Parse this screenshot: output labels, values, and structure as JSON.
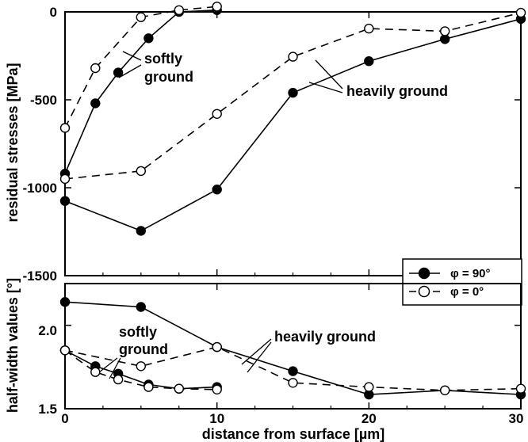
{
  "chart_data": [
    {
      "type": "line",
      "title": "",
      "xlabel": "",
      "ylabel": "residual stresses [MPa]",
      "xlim": [
        0,
        30
      ],
      "ylim": [
        -1500,
        0
      ],
      "xticks": [
        "0",
        "10",
        "20",
        "30"
      ],
      "yticks": [
        "0",
        "-500",
        "-1000",
        "-1500"
      ],
      "grid": false,
      "series": [
        {
          "group": "softly ground",
          "marker": "filled",
          "linestyle": "solid",
          "x": [
            0,
            2,
            3.5,
            5.5,
            7.5,
            10
          ],
          "y": [
            -920,
            -520,
            -345,
            -150,
            0,
            10
          ]
        },
        {
          "group": "softly ground",
          "marker": "open",
          "linestyle": "dashed",
          "x": [
            0,
            2,
            5,
            7.5,
            10
          ],
          "y": [
            -660,
            -320,
            -30,
            10,
            30
          ]
        },
        {
          "group": "heavily ground",
          "marker": "filled",
          "linestyle": "solid",
          "x": [
            0,
            5,
            10,
            15,
            20,
            25,
            30
          ],
          "y": [
            -1075,
            -1245,
            -1010,
            -460,
            -280,
            -155,
            -40
          ]
        },
        {
          "group": "heavily ground",
          "marker": "open",
          "linestyle": "dashed",
          "x": [
            0,
            5,
            10,
            15,
            20,
            25,
            30
          ],
          "y": [
            -950,
            -905,
            -580,
            -255,
            -95,
            -110,
            -5
          ]
        }
      ],
      "annotations": [
        "softly ground",
        "heavily ground"
      ],
      "legend": {
        "placement": "bottom-right",
        "entries": [
          {
            "marker": "filled",
            "linestyle": "solid",
            "label": "φ = 90°"
          },
          {
            "marker": "open",
            "linestyle": "dashed",
            "label": "φ = 0°"
          }
        ]
      }
    },
    {
      "type": "line",
      "title": "",
      "xlabel": "distance from surface [µm]",
      "ylabel": "half-width values [°]",
      "xlim": [
        0,
        30
      ],
      "ylim": [
        1.5,
        2.25
      ],
      "xticks": [
        "0",
        "10",
        "20",
        "30"
      ],
      "yticks": [
        "2.0",
        "1.5"
      ],
      "grid": false,
      "series": [
        {
          "group": "softly ground",
          "marker": "filled",
          "linestyle": "solid",
          "x": [
            0,
            2,
            3.5,
            5.5,
            7.5,
            10
          ],
          "y": [
            1.85,
            1.755,
            1.71,
            1.645,
            1.62,
            1.63
          ]
        },
        {
          "group": "softly ground",
          "marker": "open",
          "linestyle": "dashed",
          "x": [
            0,
            2,
            3.5,
            5.5,
            7.5,
            10
          ],
          "y": [
            1.85,
            1.72,
            1.675,
            1.63,
            1.62,
            1.615
          ]
        },
        {
          "group": "heavily ground",
          "marker": "filled",
          "linestyle": "solid",
          "x": [
            0,
            5,
            10,
            15,
            20,
            25,
            30
          ],
          "y": [
            2.14,
            2.11,
            1.87,
            1.725,
            1.585,
            1.61,
            1.585
          ]
        },
        {
          "group": "heavily ground",
          "marker": "open",
          "linestyle": "dashed",
          "x": [
            0,
            5,
            10,
            15,
            20,
            25,
            30
          ],
          "y": [
            1.85,
            1.755,
            1.87,
            1.655,
            1.63,
            1.61,
            1.62
          ]
        }
      ],
      "annotations": [
        "softly ground",
        "heavily ground"
      ]
    }
  ]
}
